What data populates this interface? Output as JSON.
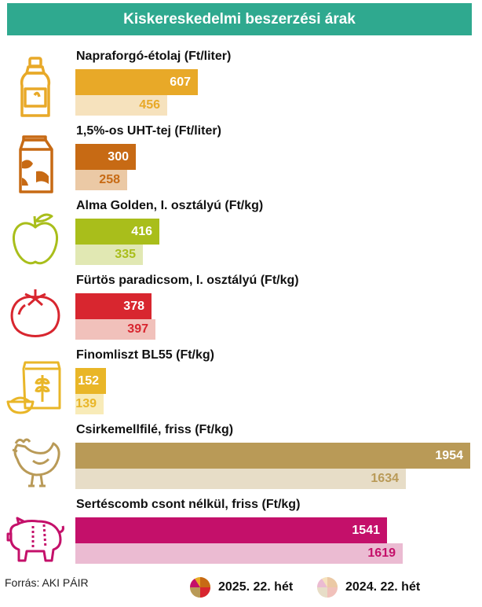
{
  "title": "Kiskereskedelmi beszerzési árak",
  "source": "Forrás: AKI PÁIR",
  "legend": {
    "current": "2025. 22. hét",
    "previous": "2024. 22. hét"
  },
  "icons": [
    "bottle-icon",
    "milk-carton-icon",
    "apple-icon",
    "tomato-icon",
    "flour-bag-icon",
    "chicken-icon",
    "pig-icon"
  ],
  "chart_data": {
    "type": "bar",
    "orientation": "horizontal",
    "title": "Kiskereskedelmi beszerzési árak",
    "categories": [
      "Napraforgó-étolaj (Ft/liter)",
      "1,5%-os UHT-tej (Ft/liter)",
      "Alma Golden, I. osztályú (Ft/kg)",
      "Fürtös paradicsom, I. osztályú (Ft/kg)",
      "Finomliszt BL55 (Ft/kg)",
      "Csirkemellfilé, friss (Ft/kg)",
      "Sertéscomb csont nélkül, friss (Ft/kg)"
    ],
    "series": [
      {
        "name": "2025. 22. hét",
        "values": [
          607,
          300,
          416,
          378,
          152,
          1954,
          1541
        ]
      },
      {
        "name": "2024. 22. hét",
        "values": [
          456,
          258,
          335,
          397,
          139,
          1634,
          1619
        ]
      }
    ],
    "colors_current": [
      "#e8a928",
      "#c76a14",
      "#a9be1b",
      "#d8262f",
      "#e9b628",
      "#b99a57",
      "#c4106a"
    ],
    "colors_previous": [
      "#f6e2bd",
      "#ebc9a5",
      "#e1e8b3",
      "#f1c1bb",
      "#f8ebb8",
      "#e7ddc7",
      "#ebbbd2"
    ],
    "xlim": [
      0,
      1954
    ],
    "grid": false,
    "legend_position": "bottom"
  }
}
